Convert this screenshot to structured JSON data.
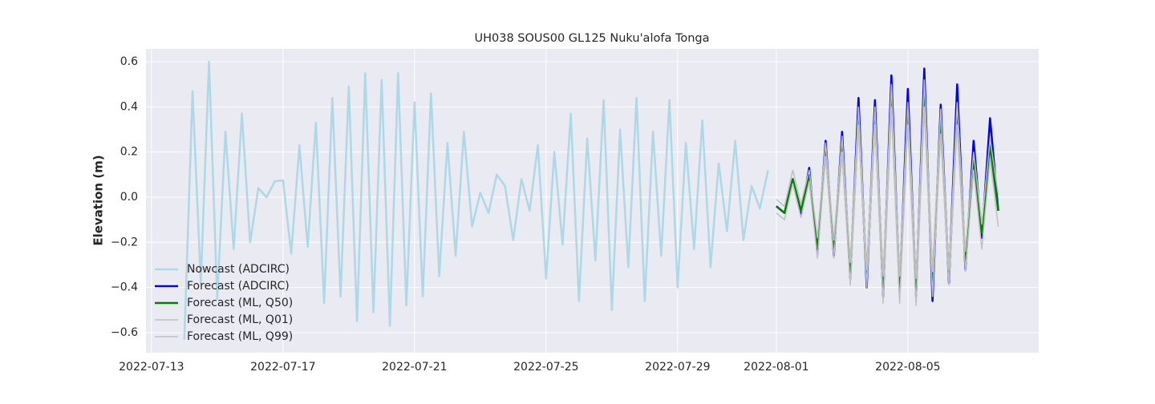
{
  "chart_data": {
    "type": "line",
    "title": "UH038 SOUS00 GL125 Nuku'alofa Tonga",
    "y_label": "Elevation (m)",
    "xlim": [
      "2022-07-12 20:00",
      "2022-08-08 23:30"
    ],
    "xticks": [
      "2022-07-13",
      "2022-07-17",
      "2022-07-21",
      "2022-07-25",
      "2022-07-29",
      "2022-08-01",
      "2022-08-05"
    ],
    "ylim": [
      -0.689,
      0.657
    ],
    "yticks": [
      {
        "value": -0.6,
        "label": "−0.6"
      },
      {
        "value": -0.4,
        "label": "−0.4"
      },
      {
        "value": -0.2,
        "label": "−0.2"
      },
      {
        "value": 0,
        "label": "0.0"
      },
      0.2,
      0.4,
      0.6
    ],
    "grid": true,
    "legend": "lower left",
    "series": [
      {
        "name": "Nowcast (ADCIRC)",
        "color": "#add8e6",
        "width": 2.5,
        "x": [
          "2022-07-14 00:00",
          "2022-07-14 06:00",
          "2022-07-14 12:00",
          "2022-07-14 18:00",
          "2022-07-15 00:00",
          "2022-07-15 06:00",
          "2022-07-15 12:00",
          "2022-07-15 18:00",
          "2022-07-16 00:00",
          "2022-07-16 06:00",
          "2022-07-16 12:00",
          "2022-07-16 18:00",
          "2022-07-17 00:00",
          "2022-07-17 06:00",
          "2022-07-17 12:00",
          "2022-07-17 18:00",
          "2022-07-18 00:00",
          "2022-07-18 06:00",
          "2022-07-18 12:00",
          "2022-07-18 18:00",
          "2022-07-19 00:00",
          "2022-07-19 06:00",
          "2022-07-19 12:00",
          "2022-07-19 18:00",
          "2022-07-20 00:00",
          "2022-07-20 06:00",
          "2022-07-20 12:00",
          "2022-07-20 18:00",
          "2022-07-21 00:00",
          "2022-07-21 06:00",
          "2022-07-21 12:00",
          "2022-07-21 18:00",
          "2022-07-22 00:00",
          "2022-07-22 06:00",
          "2022-07-22 12:00",
          "2022-07-22 18:00",
          "2022-07-23 00:00",
          "2022-07-23 06:00",
          "2022-07-23 12:00",
          "2022-07-23 18:00",
          "2022-07-24 00:00",
          "2022-07-24 06:00",
          "2022-07-24 12:00",
          "2022-07-24 18:00",
          "2022-07-25 00:00",
          "2022-07-25 06:00",
          "2022-07-25 12:00",
          "2022-07-25 18:00",
          "2022-07-26 00:00",
          "2022-07-26 06:00",
          "2022-07-26 12:00",
          "2022-07-26 18:00",
          "2022-07-27 00:00",
          "2022-07-27 06:00",
          "2022-07-27 12:00",
          "2022-07-27 18:00",
          "2022-07-28 00:00",
          "2022-07-28 06:00",
          "2022-07-28 12:00",
          "2022-07-28 18:00",
          "2022-07-29 00:00",
          "2022-07-29 06:00",
          "2022-07-29 12:00",
          "2022-07-29 18:00",
          "2022-07-30 00:00",
          "2022-07-30 06:00",
          "2022-07-30 12:00",
          "2022-07-30 18:00",
          "2022-07-31 00:00",
          "2022-07-31 06:00",
          "2022-07-31 12:00",
          "2022-07-31 18:00"
        ],
        "values": [
          -0.63,
          0.47,
          -0.38,
          0.6,
          -0.45,
          0.29,
          -0.23,
          0.37,
          -0.2,
          0.04,
          0,
          0.07,
          0.075,
          -0.25,
          0.23,
          -0.22,
          0.33,
          -0.47,
          0.44,
          -0.44,
          0.49,
          -0.55,
          0.55,
          -0.51,
          0.52,
          -0.57,
          0.55,
          -0.48,
          0.42,
          -0.44,
          0.46,
          -0.35,
          0.24,
          -0.26,
          0.29,
          -0.13,
          0.02,
          -0.07,
          0.1,
          0.05,
          -0.19,
          0.08,
          -0.06,
          0.23,
          -0.36,
          0.2,
          -0.21,
          0.37,
          -0.46,
          0.26,
          -0.28,
          0.43,
          -0.5,
          0.3,
          -0.31,
          0.44,
          -0.46,
          0.29,
          -0.26,
          0.43,
          -0.4,
          0.24,
          -0.23,
          0.34,
          -0.31,
          0.15,
          -0.15,
          0.25,
          -0.19,
          0.05,
          -0.05,
          0.12
        ]
      },
      {
        "name": "Forecast (ADCIRC)",
        "color": "#0000ff",
        "width": 2.5,
        "x": [
          "2022-08-01 00:00",
          "2022-08-01 06:00",
          "2022-08-01 12:00",
          "2022-08-01 18:00",
          "2022-08-02 00:00",
          "2022-08-02 06:00",
          "2022-08-02 12:00",
          "2022-08-02 18:00",
          "2022-08-03 00:00",
          "2022-08-03 06:00",
          "2022-08-03 12:00",
          "2022-08-03 18:00",
          "2022-08-04 00:00",
          "2022-08-04 06:00",
          "2022-08-04 12:00",
          "2022-08-04 18:00",
          "2022-08-05 00:00",
          "2022-08-05 06:00",
          "2022-08-05 12:00",
          "2022-08-05 18:00",
          "2022-08-06 00:00",
          "2022-08-06 06:00",
          "2022-08-06 12:00",
          "2022-08-06 18:00",
          "2022-08-07 00:00",
          "2022-08-07 06:00",
          "2022-08-07 12:00",
          "2022-08-07 18:00"
        ],
        "values": [
          -0.04,
          -0.07,
          0.08,
          -0.08,
          0.13,
          -0.25,
          0.25,
          -0.26,
          0.29,
          -0.36,
          0.44,
          -0.4,
          0.43,
          -0.44,
          0.54,
          -0.42,
          0.48,
          -0.44,
          0.57,
          -0.46,
          0.41,
          -0.38,
          0.5,
          -0.32,
          0.25,
          -0.18,
          0.35,
          -0.06
        ]
      },
      {
        "name": "Forecast (ML, Q50)",
        "color": "#008000",
        "width": 2.5,
        "x": [
          "2022-08-01 00:00",
          "2022-08-01 06:00",
          "2022-08-01 12:00",
          "2022-08-01 18:00",
          "2022-08-02 00:00",
          "2022-08-02 06:00",
          "2022-08-02 12:00",
          "2022-08-02 18:00",
          "2022-08-03 00:00",
          "2022-08-03 06:00",
          "2022-08-03 12:00",
          "2022-08-03 18:00",
          "2022-08-04 00:00",
          "2022-08-04 06:00",
          "2022-08-04 12:00",
          "2022-08-04 18:00",
          "2022-08-05 00:00",
          "2022-08-05 06:00",
          "2022-08-05 12:00",
          "2022-08-05 18:00",
          "2022-08-06 00:00",
          "2022-08-06 06:00",
          "2022-08-06 12:00",
          "2022-08-06 18:00",
          "2022-08-07 00:00",
          "2022-08-07 06:00",
          "2022-08-07 12:00",
          "2022-08-07 18:00"
        ],
        "values": [
          -0.04,
          -0.07,
          0.08,
          -0.06,
          0.09,
          -0.22,
          0.21,
          -0.23,
          0.23,
          -0.34,
          0.36,
          -0.36,
          0.36,
          -0.4,
          0.45,
          -0.4,
          0.37,
          -0.41,
          0.46,
          -0.38,
          0.34,
          -0.36,
          0.38,
          -0.29,
          0.16,
          -0.16,
          0.23,
          -0.06
        ]
      },
      {
        "name": "Forecast (ML, Q01)",
        "color": "#c0c0c0",
        "width": 1.5,
        "x": [
          "2022-08-01 00:00",
          "2022-08-01 06:00",
          "2022-08-01 12:00",
          "2022-08-01 18:00",
          "2022-08-02 00:00",
          "2022-08-02 06:00",
          "2022-08-02 12:00",
          "2022-08-02 18:00",
          "2022-08-03 00:00",
          "2022-08-03 06:00",
          "2022-08-03 12:00",
          "2022-08-03 18:00",
          "2022-08-04 00:00",
          "2022-08-04 06:00",
          "2022-08-04 12:00",
          "2022-08-04 18:00",
          "2022-08-05 00:00",
          "2022-08-05 06:00",
          "2022-08-05 12:00",
          "2022-08-05 18:00",
          "2022-08-06 00:00",
          "2022-08-06 06:00",
          "2022-08-06 12:00",
          "2022-08-06 18:00",
          "2022-08-07 00:00",
          "2022-08-07 06:00",
          "2022-08-07 12:00",
          "2022-08-07 18:00"
        ],
        "values": [
          -0.07,
          -0.1,
          0.06,
          -0.09,
          0.07,
          -0.27,
          0.18,
          -0.27,
          0.2,
          -0.39,
          0.32,
          -0.4,
          0.32,
          -0.47,
          0.4,
          -0.47,
          0.32,
          -0.48,
          0.4,
          -0.44,
          0.28,
          -0.39,
          0.32,
          -0.33,
          0.12,
          -0.23,
          0.17,
          -0.13
        ]
      },
      {
        "name": "Forecast (ML, Q99)",
        "color": "#c0c0c0",
        "width": 1.5,
        "x": [
          "2022-08-01 00:00",
          "2022-08-01 06:00",
          "2022-08-01 12:00",
          "2022-08-01 18:00",
          "2022-08-02 00:00",
          "2022-08-02 06:00",
          "2022-08-02 12:00",
          "2022-08-02 18:00",
          "2022-08-03 00:00",
          "2022-08-03 06:00",
          "2022-08-03 12:00",
          "2022-08-03 18:00",
          "2022-08-04 00:00",
          "2022-08-04 06:00",
          "2022-08-04 12:00",
          "2022-08-04 18:00",
          "2022-08-05 00:00",
          "2022-08-05 06:00",
          "2022-08-05 12:00",
          "2022-08-05 18:00",
          "2022-08-06 00:00",
          "2022-08-06 06:00",
          "2022-08-06 12:00",
          "2022-08-06 18:00",
          "2022-08-07 00:00",
          "2022-08-07 06:00",
          "2022-08-07 12:00",
          "2022-08-07 18:00"
        ],
        "values": [
          -0.01,
          -0.04,
          0.12,
          -0.03,
          0.12,
          -0.18,
          0.24,
          -0.19,
          0.27,
          -0.29,
          0.4,
          -0.32,
          0.4,
          -0.35,
          0.5,
          -0.35,
          0.42,
          -0.36,
          0.52,
          -0.33,
          0.39,
          -0.32,
          0.42,
          -0.24,
          0.2,
          -0.12,
          0.26,
          0.01
        ]
      }
    ]
  }
}
